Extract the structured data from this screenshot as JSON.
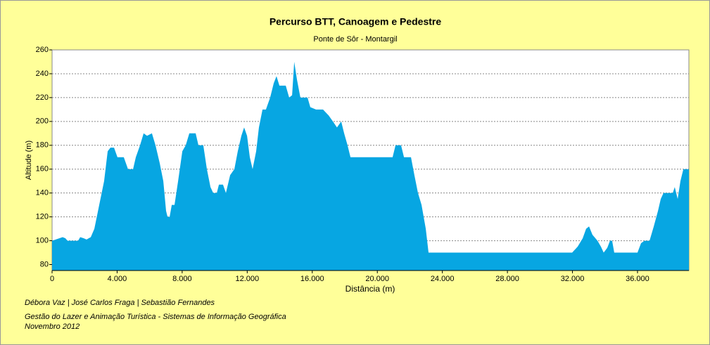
{
  "chart_data": {
    "type": "area",
    "title": "Percurso BTT, Canoagem e Pedestre",
    "subtitle": "Ponte de Sôr - Montargil",
    "x_label": "Distância (m)",
    "y_label": "Altitude (m)",
    "color": "#07a6e2",
    "grid": true,
    "xlim": [
      0,
      39160
    ],
    "ylim": [
      75,
      260
    ],
    "xticks": [
      0,
      {
        "value": 4000,
        "label": "4.000"
      },
      {
        "value": 8000,
        "label": "8.000"
      },
      {
        "value": 12000,
        "label": "12.000"
      },
      {
        "value": 16000,
        "label": "16.000"
      },
      {
        "value": 20000,
        "label": "20.000"
      },
      {
        "value": 24000,
        "label": "24.000"
      },
      {
        "value": 28000,
        "label": "28.000"
      },
      {
        "value": 32000,
        "label": "32.000"
      },
      {
        "value": 36000,
        "label": "36.000"
      }
    ],
    "yticks": [
      80,
      100,
      120,
      140,
      160,
      180,
      200,
      220,
      240,
      260
    ],
    "x": [
      0,
      650,
      820,
      950,
      1600,
      1730,
      1950,
      2120,
      2380,
      2600,
      2900,
      3200,
      3420,
      3590,
      3810,
      4020,
      4410,
      4670,
      4980,
      5150,
      5410,
      5630,
      5840,
      6140,
      6360,
      6620,
      6840,
      7010,
      7100,
      7230,
      7360,
      7530,
      7750,
      8010,
      8220,
      8440,
      8830,
      9000,
      9300,
      9520,
      9740,
      9910,
      10130,
      10260,
      10510,
      10690,
      10950,
      11210,
      11420,
      11640,
      11810,
      11990,
      12160,
      12330,
      12550,
      12720,
      12940,
      13150,
      13410,
      13630,
      13800,
      13980,
      14370,
      14580,
      14760,
      14890,
      15060,
      15270,
      15710,
      15880,
      16230,
      16660,
      17010,
      17270,
      17520,
      17780,
      17960,
      18170,
      18350,
      20940,
      21120,
      21460,
      21640,
      22070,
      22280,
      22500,
      22720,
      22980,
      23150,
      31980,
      32320,
      32630,
      32840,
      33020,
      33230,
      33540,
      33750,
      33920,
      34140,
      34310,
      34440,
      34570,
      36000,
      36220,
      36430,
      36740,
      37000,
      37260,
      37430,
      37600,
      38170,
      38290,
      38470,
      38640,
      38820,
      39160
    ],
    "values": [
      100,
      103,
      102,
      100,
      100,
      103,
      102,
      101,
      103,
      110,
      130,
      150,
      175,
      178,
      178,
      170,
      170,
      160,
      160,
      170,
      180,
      190,
      188,
      190,
      180,
      165,
      150,
      125,
      120,
      120,
      130,
      130,
      150,
      175,
      180,
      190,
      190,
      180,
      180,
      160,
      145,
      140,
      140,
      147,
      147,
      140,
      155,
      160,
      175,
      188,
      195,
      188,
      170,
      160,
      175,
      195,
      210,
      210,
      220,
      232,
      238,
      230,
      230,
      220,
      222,
      250,
      235,
      220,
      220,
      212,
      210,
      210,
      205,
      200,
      195,
      200,
      190,
      180,
      170,
      170,
      180,
      180,
      170,
      170,
      155,
      140,
      130,
      110,
      90,
      90,
      95,
      102,
      110,
      112,
      105,
      100,
      95,
      90,
      94,
      100,
      100,
      90,
      90,
      98,
      100,
      100,
      112,
      125,
      135,
      140,
      140,
      145,
      135,
      150,
      160,
      160
    ]
  },
  "footer": {
    "authors": "Débora Vaz | José Carlos Fraga | Sebastião Fernandes",
    "course": "Gestão do Lazer e Animação Turística - Sistemas de Informação Geográfica",
    "date": "Novembro 2012"
  }
}
